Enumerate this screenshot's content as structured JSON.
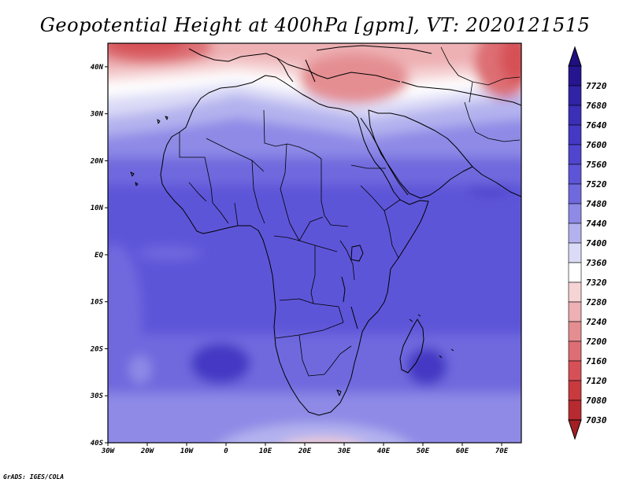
{
  "title": "Geopotential Height at 400hPa [gpm], VT: 2020121515",
  "credit": "GrADS: IGES/COLA",
  "map": {
    "lon_range": [
      -30,
      75
    ],
    "lat_range": [
      -40,
      45
    ],
    "lon_ticks": [
      {
        "value": -30,
        "label": "30W"
      },
      {
        "value": -20,
        "label": "20W"
      },
      {
        "value": -10,
        "label": "10W"
      },
      {
        "value": 0,
        "label": "0"
      },
      {
        "value": 10,
        "label": "10E"
      },
      {
        "value": 20,
        "label": "20E"
      },
      {
        "value": 30,
        "label": "30E"
      },
      {
        "value": 40,
        "label": "40E"
      },
      {
        "value": 50,
        "label": "50E"
      },
      {
        "value": 60,
        "label": "60E"
      },
      {
        "value": 70,
        "label": "70E"
      }
    ],
    "lat_ticks": [
      {
        "value": 40,
        "label": "40N"
      },
      {
        "value": 30,
        "label": "30N"
      },
      {
        "value": 20,
        "label": "20N"
      },
      {
        "value": 10,
        "label": "10N"
      },
      {
        "value": 0,
        "label": "EQ"
      },
      {
        "value": -10,
        "label": "10S"
      },
      {
        "value": -20,
        "label": "20S"
      },
      {
        "value": -30,
        "label": "30S"
      },
      {
        "value": -40,
        "label": "40S"
      }
    ]
  },
  "colorbar": {
    "levels": [
      {
        "label": "7720",
        "color": "#26158f"
      },
      {
        "label": "7680",
        "color": "#3023a6"
      },
      {
        "label": "7640",
        "color": "#3a2fb6"
      },
      {
        "label": "7600",
        "color": "#4438c4"
      },
      {
        "label": "7560",
        "color": "#4f45cf"
      },
      {
        "label": "7520",
        "color": "#5d55d8"
      },
      {
        "label": "7480",
        "color": "#6f69de"
      },
      {
        "label": "7440",
        "color": "#8e8ae6"
      },
      {
        "label": "7400",
        "color": "#b4b2ee"
      },
      {
        "label": "7360",
        "color": "#dcdbf7"
      },
      {
        "label": "7320",
        "color": "#ffffff"
      },
      {
        "label": "7280",
        "color": "#f6d3d5"
      },
      {
        "label": "7240",
        "color": "#edb0b3"
      },
      {
        "label": "7200",
        "color": "#e48e92"
      },
      {
        "label": "7160",
        "color": "#dd6e73"
      },
      {
        "label": "7120",
        "color": "#d65157"
      },
      {
        "label": "7080",
        "color": "#c93a3f"
      },
      {
        "label": "7030",
        "color": "#b72a2f"
      }
    ],
    "top_arrow_color": "#1f0f80",
    "bottom_arrow_color": "#a31f24"
  }
}
